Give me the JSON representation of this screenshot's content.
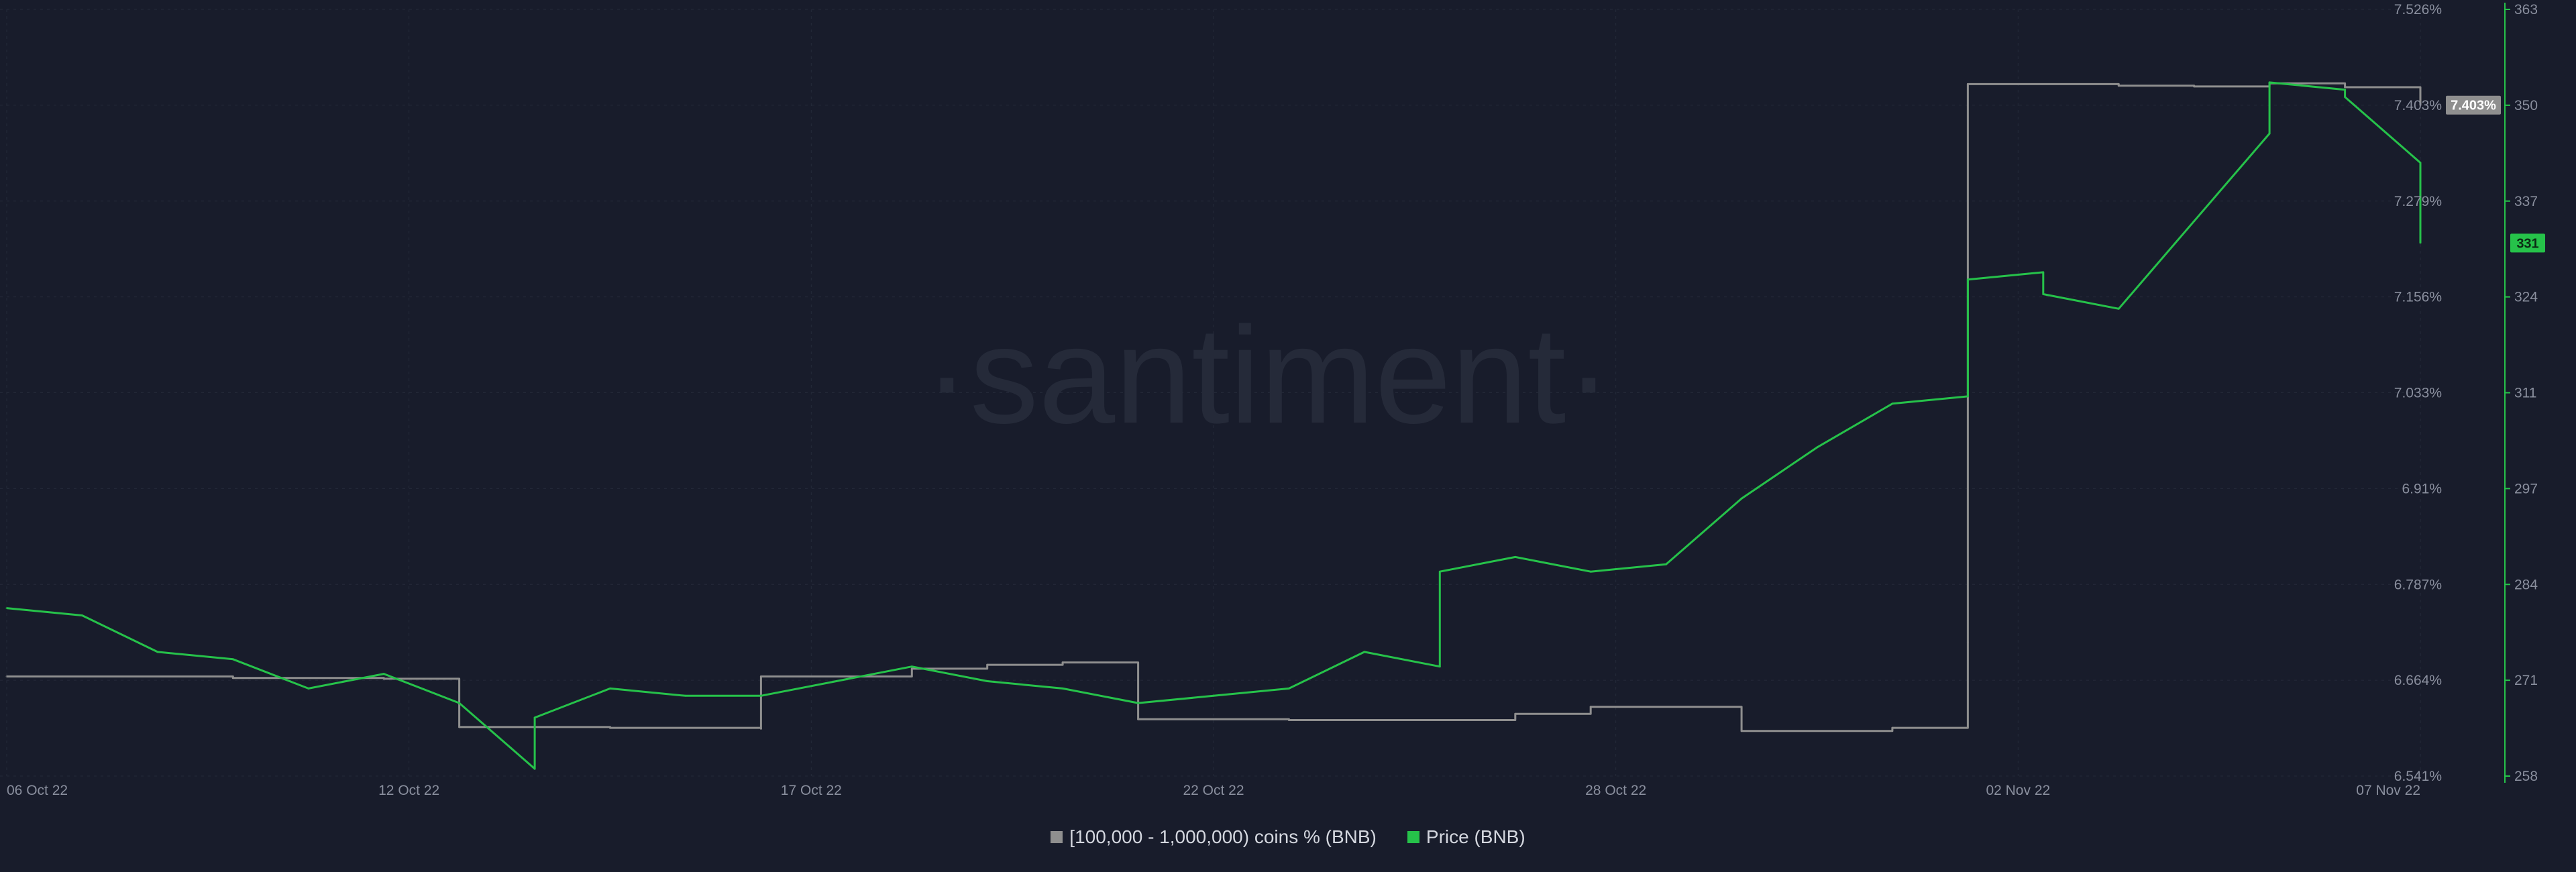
{
  "watermark": "·santiment·",
  "colors": {
    "background": "#181c2b",
    "gridline": "#252a3a",
    "holders_series": "#8f8f8f",
    "price_series": "#26c24a",
    "price_axis_line": "#26c24a"
  },
  "legend": [
    {
      "label": "[100,000  - 1,000,000) coins % (BNB)",
      "color": "#8f8f8f"
    },
    {
      "label": "Price (BNB)",
      "color": "#26c24a"
    }
  ],
  "chart_data": {
    "type": "line",
    "x_ticks": [
      "06 Oct 22",
      "12 Oct 22",
      "17 Oct 22",
      "22 Oct 22",
      "28 Oct 22",
      "02 Nov 22",
      "07 Nov 22"
    ],
    "x_range": [
      "2022-10-06",
      "2022-11-07"
    ],
    "grid": true,
    "legend_position": "bottom-center",
    "axes": {
      "left_inner": {
        "label": "",
        "ticks": [
          "7.526%",
          "7.403%",
          "7.279%",
          "7.156%",
          "7.033%",
          "6.91%",
          "6.787%",
          "6.664%",
          "6.541%"
        ],
        "range": [
          6.541,
          7.526
        ]
      },
      "right": {
        "label": "",
        "ticks": [
          "363",
          "350",
          "337",
          "324",
          "311",
          "297",
          "284",
          "271",
          "258"
        ],
        "range": [
          258,
          363
        ]
      }
    },
    "series": [
      {
        "name": "[100,000  - 1,000,000) coins % (BNB)",
        "axis": "left_inner",
        "color": "#8f8f8f",
        "step": true,
        "last_value_label": "7.403%",
        "points": [
          [
            "2022-10-06",
            6.669
          ],
          [
            "2022-10-09",
            6.667
          ],
          [
            "2022-10-11",
            6.666
          ],
          [
            "2022-10-12",
            6.604
          ],
          [
            "2022-10-14",
            6.603
          ],
          [
            "2022-10-16",
            6.602
          ],
          [
            "2022-10-16",
            6.669
          ],
          [
            "2022-10-18",
            6.679
          ],
          [
            "2022-10-19",
            6.684
          ],
          [
            "2022-10-20",
            6.687
          ],
          [
            "2022-10-21",
            6.614
          ],
          [
            "2022-10-23",
            6.613
          ],
          [
            "2022-10-26",
            6.621
          ],
          [
            "2022-10-27",
            6.63
          ],
          [
            "2022-10-29",
            6.599
          ],
          [
            "2022-10-31",
            6.603
          ],
          [
            "2022-11-01",
            6.713
          ],
          [
            "2022-11-01",
            7.43
          ],
          [
            "2022-11-03",
            7.428
          ],
          [
            "2022-11-04",
            7.427
          ],
          [
            "2022-11-05",
            7.431
          ],
          [
            "2022-11-06",
            7.426
          ],
          [
            "2022-11-07",
            7.403
          ]
        ]
      },
      {
        "name": "Price (BNB)",
        "axis": "right",
        "color": "#26c24a",
        "last_value_label": "331",
        "points": [
          [
            "2022-10-06",
            281
          ],
          [
            "2022-10-07",
            280
          ],
          [
            "2022-10-08",
            275
          ],
          [
            "2022-10-09",
            274
          ],
          [
            "2022-10-10",
            270
          ],
          [
            "2022-10-11",
            272
          ],
          [
            "2022-10-12",
            268
          ],
          [
            "2022-10-13",
            259
          ],
          [
            "2022-10-13",
            266
          ],
          [
            "2022-10-14",
            270
          ],
          [
            "2022-10-15",
            269
          ],
          [
            "2022-10-16",
            269
          ],
          [
            "2022-10-17",
            271
          ],
          [
            "2022-10-18",
            273
          ],
          [
            "2022-10-19",
            271
          ],
          [
            "2022-10-20",
            270
          ],
          [
            "2022-10-21",
            268
          ],
          [
            "2022-10-22",
            269
          ],
          [
            "2022-10-23",
            270
          ],
          [
            "2022-10-24",
            275
          ],
          [
            "2022-10-25",
            273
          ],
          [
            "2022-10-25",
            286
          ],
          [
            "2022-10-26",
            288
          ],
          [
            "2022-10-27",
            286
          ],
          [
            "2022-10-28",
            287
          ],
          [
            "2022-10-29",
            296
          ],
          [
            "2022-10-30",
            303
          ],
          [
            "2022-10-31",
            309
          ],
          [
            "2022-11-01",
            310
          ],
          [
            "2022-11-01",
            326
          ],
          [
            "2022-11-02",
            327
          ],
          [
            "2022-11-02",
            324
          ],
          [
            "2022-11-03",
            322
          ],
          [
            "2022-11-04",
            334
          ],
          [
            "2022-11-05",
            346
          ],
          [
            "2022-11-05",
            353
          ],
          [
            "2022-11-06",
            352
          ],
          [
            "2022-11-06",
            351
          ],
          [
            "2022-11-07",
            342
          ],
          [
            "2022-11-07",
            332
          ],
          [
            "2022-11-07",
            331
          ]
        ]
      }
    ]
  }
}
